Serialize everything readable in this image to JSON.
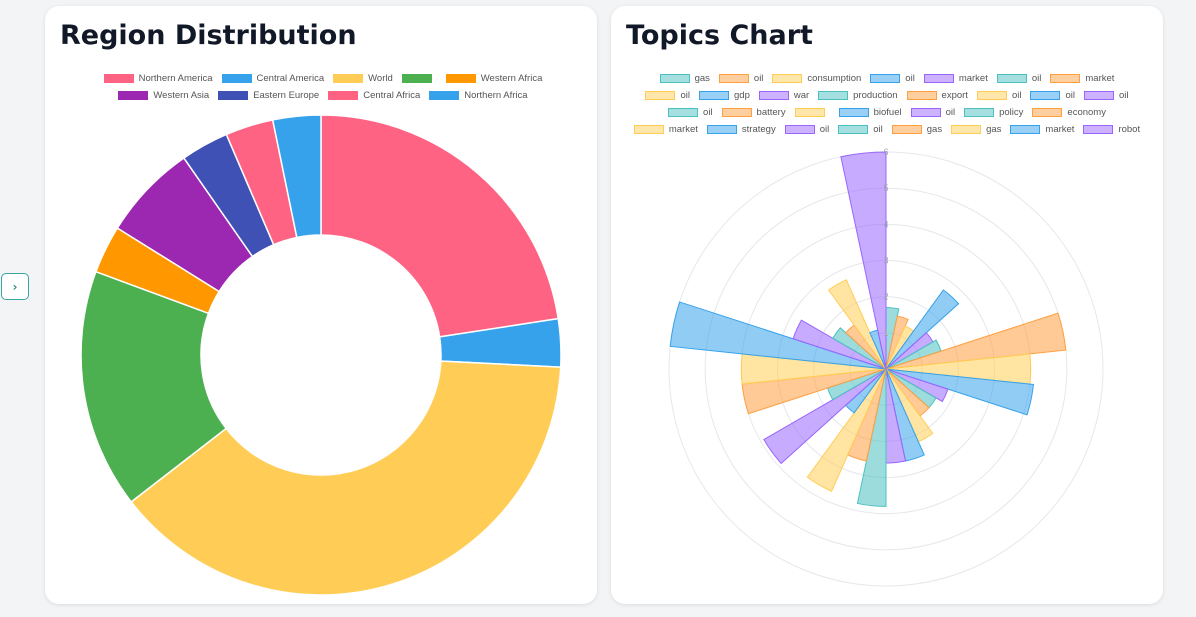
{
  "nav": {
    "next_icon": "chevron-right-icon",
    "next_glyph": "›"
  },
  "chart_data": [
    {
      "type": "doughnut",
      "title": "Region Distribution",
      "legend_position": "top",
      "labels": [
        "Northern America",
        "Central America",
        "World",
        "Western Africa",
        "Western Asia",
        "Eastern Europe",
        "Central Africa",
        "Northern Africa"
      ],
      "segments": [
        {
          "label": "Northern America",
          "value": 21,
          "color": "#ff6384"
        },
        {
          "label": "Central America",
          "value": 3,
          "color": "#36a2eb"
        },
        {
          "label": "World",
          "value": 36,
          "color": "#ffcd56"
        },
        {
          "label": "",
          "value": 15,
          "color": "#4caf50"
        },
        {
          "label": "Western Africa",
          "value": 3,
          "color": "#ff9800"
        },
        {
          "label": "Western Asia",
          "value": 6,
          "color": "#9c27b0"
        },
        {
          "label": "Eastern Europe",
          "value": 3,
          "color": "#3f51b5"
        },
        {
          "label": "Central Africa",
          "value": 3,
          "color": "#ff6384"
        },
        {
          "label": "Northern Africa",
          "value": 3,
          "color": "#36a2eb"
        }
      ]
    },
    {
      "type": "polarArea",
      "title": "Topics Chart",
      "legend_position": "top",
      "r_ticks": [
        "1",
        "2",
        "3",
        "4",
        "5",
        "6"
      ],
      "r_max": 6,
      "grid": true,
      "segments": [
        {
          "label": "gas",
          "value": 1.7,
          "color": "#4bc0c0"
        },
        {
          "label": "oil",
          "value": 1.5,
          "color": "#ff9f40"
        },
        {
          "label": "consumption",
          "value": 1.3,
          "color": "#ffcd56"
        },
        {
          "label": "oil",
          "value": 2.7,
          "color": "#36a2eb"
        },
        {
          "label": "market",
          "value": 1.5,
          "color": "#9966ff"
        },
        {
          "label": "oil",
          "value": 1.6,
          "color": "#4bc0c0"
        },
        {
          "label": "market",
          "value": 5.0,
          "color": "#ff9f40"
        },
        {
          "label": "oil",
          "value": 4.0,
          "color": "#ffcd56"
        },
        {
          "label": "gdp",
          "value": 4.1,
          "color": "#36a2eb"
        },
        {
          "label": "war",
          "value": 1.8,
          "color": "#9966ff"
        },
        {
          "label": "production",
          "value": 1.6,
          "color": "#4bc0c0"
        },
        {
          "label": "export",
          "value": 1.6,
          "color": "#ff9f40"
        },
        {
          "label": "oil",
          "value": 2.2,
          "color": "#ffcd56"
        },
        {
          "label": "oil",
          "value": 2.6,
          "color": "#36a2eb"
        },
        {
          "label": "oil",
          "value": 2.6,
          "color": "#9966ff"
        },
        {
          "label": "oil",
          "value": 3.8,
          "color": "#4bc0c0"
        },
        {
          "label": "battery",
          "value": 2.6,
          "color": "#ff9f40"
        },
        {
          "label": "",
          "value": 3.7,
          "color": "#ffcd56"
        },
        {
          "label": "biofuel",
          "value": 1.5,
          "color": "#36a2eb"
        },
        {
          "label": "oil",
          "value": 3.9,
          "color": "#9966ff"
        },
        {
          "label": "policy",
          "value": 1.7,
          "color": "#4bc0c0"
        },
        {
          "label": "economy",
          "value": 4.0,
          "color": "#ff9f40"
        },
        {
          "label": "market",
          "value": 4.0,
          "color": "#ffcd56"
        },
        {
          "label": "strategy",
          "value": 6.0,
          "color": "#36a2eb"
        },
        {
          "label": "oil",
          "value": 2.7,
          "color": "#9966ff"
        },
        {
          "label": "oil",
          "value": 1.7,
          "color": "#4bc0c0"
        },
        {
          "label": "gas",
          "value": 1.5,
          "color": "#ff9f40"
        },
        {
          "label": "gas",
          "value": 2.7,
          "color": "#ffcd56"
        },
        {
          "label": "market",
          "value": 1.1,
          "color": "#36a2eb"
        },
        {
          "label": "robot",
          "value": 6.0,
          "color": "#9966ff"
        }
      ]
    }
  ]
}
